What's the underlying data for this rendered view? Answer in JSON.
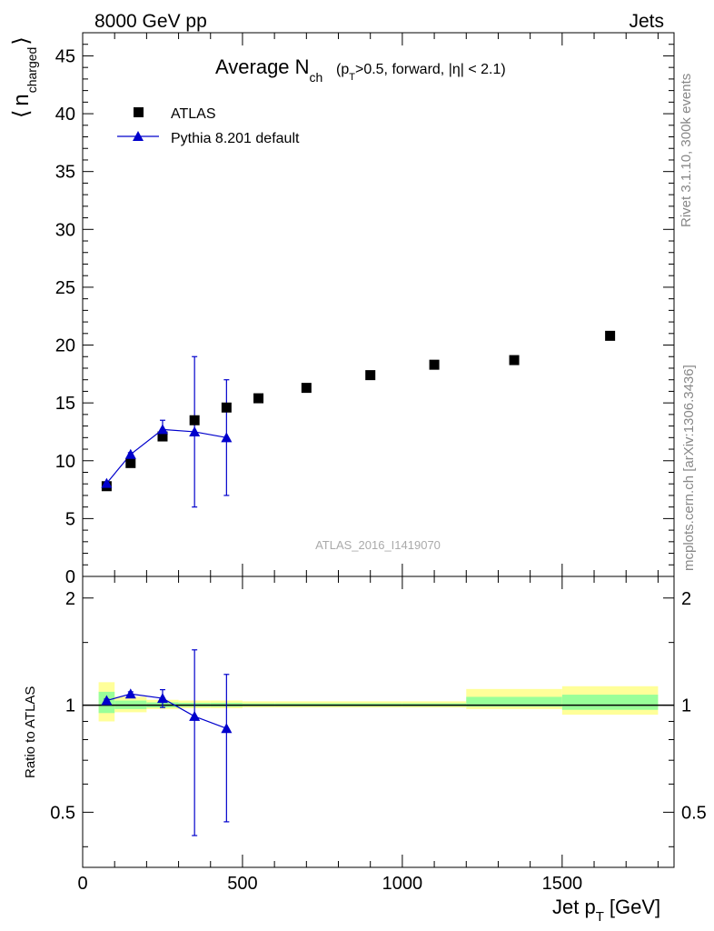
{
  "header": {
    "left": "8000 GeV pp",
    "right": "Jets"
  },
  "side_labels": {
    "rivet": "Rivet 3.1.10,  300k events",
    "mcplots": "mcplots.cern.ch [arXiv:1306.3436]"
  },
  "top_panel": {
    "title_main": "Average N",
    "title_sub": "ch",
    "title_tail_pre": "(p",
    "title_tail_sub": "T",
    "title_tail_post": ">0.5, forward, |η| < 2.1)",
    "ylabel_bracket_left": "⟨",
    "ylabel_main": "n",
    "ylabel_sub": "charged",
    "ylabel_bracket_right": "⟩",
    "watermark": "ATLAS_2016_I1419070",
    "yticks": [
      "0",
      "5",
      "10",
      "15",
      "20",
      "25",
      "30",
      "35",
      "40",
      "45"
    ]
  },
  "bottom_panel": {
    "ylabel": "Ratio to ATLAS",
    "yticks": [
      "0.5",
      "1",
      "2"
    ],
    "xlabel_main": "Jet p",
    "xlabel_sub": "T",
    "xlabel_unit": "[GeV]",
    "xticks": [
      "0",
      "500",
      "1000",
      "1500"
    ]
  },
  "legend": {
    "atlas": "ATLAS",
    "pythia": "Pythia 8.201 default"
  },
  "colors": {
    "data": "#000000",
    "mc": "#0000cc",
    "band_yellow": "#ffff99",
    "band_green": "#99ff99"
  },
  "chart_data": {
    "type": "scatter",
    "xlabel": "Jet pT [GeV]",
    "ylabel": "⟨ n_charged ⟩",
    "xlim": [
      0,
      1850
    ],
    "ylim": [
      0,
      47
    ],
    "ratio_ylim": [
      0.35,
      2.3
    ],
    "ratio_ylabel": "Ratio to ATLAS",
    "legend_position": "top-left",
    "series": [
      {
        "name": "ATLAS",
        "marker": "square",
        "x": [
          75,
          150,
          250,
          350,
          450,
          550,
          700,
          900,
          1100,
          1350,
          1650
        ],
        "y": [
          7.8,
          9.8,
          12.1,
          13.5,
          14.6,
          15.4,
          16.3,
          17.4,
          18.3,
          18.7,
          20.8
        ]
      },
      {
        "name": "Pythia 8.201 default",
        "marker": "triangle",
        "x": [
          75,
          150,
          250,
          350,
          450
        ],
        "y": [
          8.05,
          10.55,
          12.7,
          12.5,
          12.0
        ],
        "yerr_low": [
          0.1,
          0.15,
          0.8,
          6.5,
          5.0
        ],
        "yerr_high": [
          0.1,
          0.15,
          0.8,
          6.5,
          5.0
        ]
      }
    ],
    "ratio": {
      "x": [
        75,
        150,
        250,
        350,
        450
      ],
      "values": [
        1.03,
        1.075,
        1.045,
        0.93,
        0.86
      ],
      "err_low": [
        0.01,
        0.015,
        0.06,
        0.5,
        0.39
      ],
      "err_high": [
        0.01,
        0.015,
        0.06,
        0.5,
        0.36
      ]
    },
    "uncertainty_bands": [
      {
        "x0": 50,
        "x1": 100,
        "yellow": [
          0.9,
          1.16
        ],
        "green": [
          0.95,
          1.09
        ]
      },
      {
        "x0": 100,
        "x1": 200,
        "yellow": [
          0.955,
          1.055
        ],
        "green": [
          0.975,
          1.03
        ]
      },
      {
        "x0": 200,
        "x1": 300,
        "yellow": [
          0.975,
          1.035
        ],
        "green": [
          0.985,
          1.018
        ]
      },
      {
        "x0": 300,
        "x1": 400,
        "yellow": [
          0.98,
          1.03
        ],
        "green": [
          0.99,
          1.015
        ]
      },
      {
        "x0": 400,
        "x1": 500,
        "yellow": [
          0.98,
          1.03
        ],
        "green": [
          0.99,
          1.015
        ]
      },
      {
        "x0": 500,
        "x1": 600,
        "yellow": [
          0.985,
          1.025
        ],
        "green": [
          0.993,
          1.012
        ]
      },
      {
        "x0": 600,
        "x1": 800,
        "yellow": [
          0.985,
          1.025
        ],
        "green": [
          0.993,
          1.012
        ]
      },
      {
        "x0": 800,
        "x1": 1000,
        "yellow": [
          0.985,
          1.025
        ],
        "green": [
          0.993,
          1.012
        ]
      },
      {
        "x0": 1000,
        "x1": 1200,
        "yellow": [
          0.985,
          1.025
        ],
        "green": [
          0.993,
          1.012
        ]
      },
      {
        "x0": 1200,
        "x1": 1500,
        "yellow": [
          0.975,
          1.11
        ],
        "green": [
          0.99,
          1.055
        ]
      },
      {
        "x0": 1500,
        "x1": 1800,
        "yellow": [
          0.94,
          1.13
        ],
        "green": [
          0.97,
          1.07
        ]
      }
    ]
  }
}
